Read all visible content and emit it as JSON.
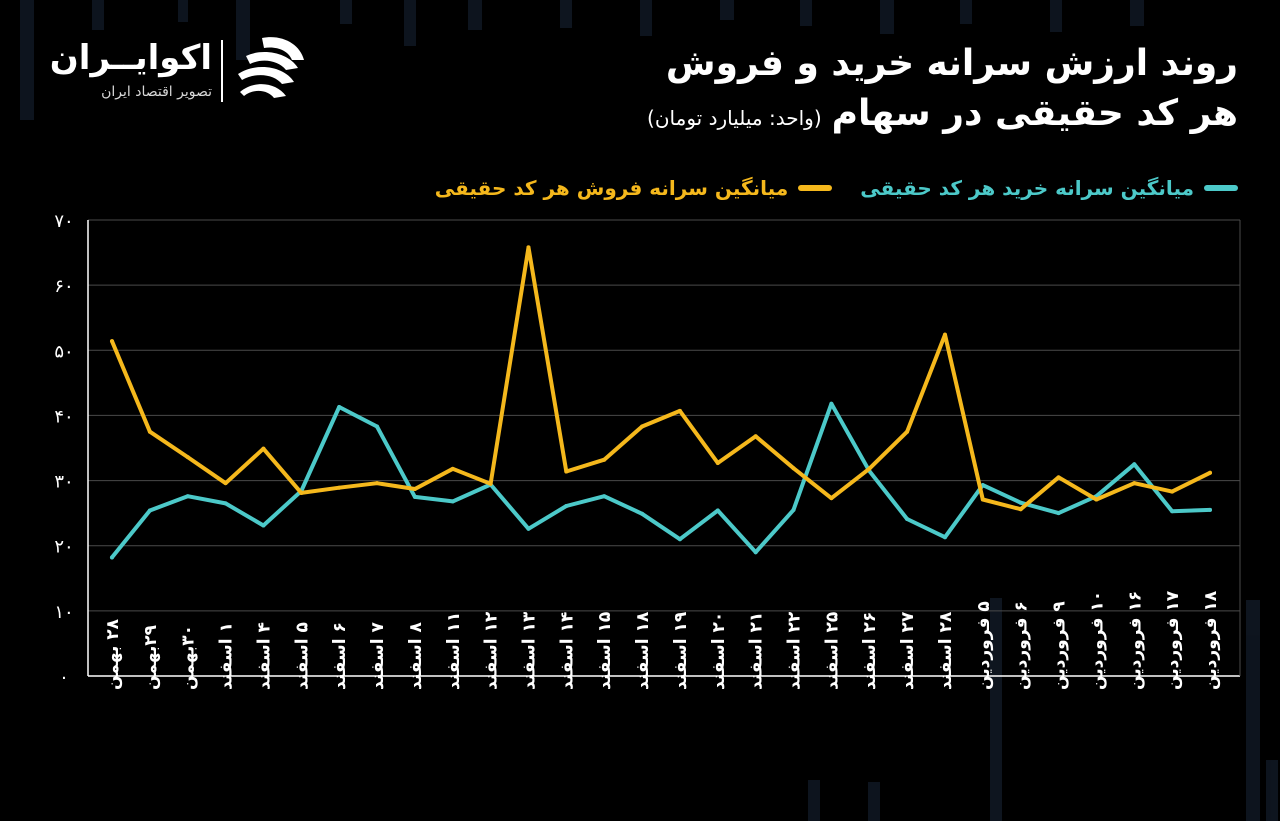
{
  "header": {
    "title_line1": "روند ارزش سرانه خرید و فروش",
    "title_line2": "هر کد حقیقی در سهام",
    "unit": "(واحد: میلیارد تومان)"
  },
  "logo": {
    "name": "اکوایــران",
    "tagline": "تصویر اقتصاد ایران"
  },
  "legend": [
    {
      "label": "میانگین سرانه خرید هر کد حقیقی",
      "color": "#4cc9c9"
    },
    {
      "label": "میانگین سرانه فروش هر کد حقیقی",
      "color": "#f5b81c"
    }
  ],
  "colors": {
    "background": "#000000",
    "grid": "#4a4a4a",
    "axis": "#ffffff"
  },
  "chart_data": {
    "type": "line",
    "ylim": [
      0,
      70
    ],
    "yticks": [
      "۰",
      "۱۰",
      "۲۰",
      "۳۰",
      "۴۰",
      "۵۰",
      "۶۰",
      "۷۰"
    ],
    "ytick_values": [
      0,
      10,
      20,
      30,
      40,
      50,
      60,
      70
    ],
    "grid": "horizontal",
    "categories": [
      "۲۸ بهمن",
      "۲۹بهمن",
      "۳۰بهمن",
      "۱ اسفند",
      "۴ اسفند",
      "۵ اسفند",
      "۶ اسفند",
      "۷ اسفند",
      "۸ اسفند",
      "۱۱ اسفند",
      "۱۲ اسفند",
      "۱۳ اسفند",
      "۱۴ اسفند",
      "۱۵ اسفند",
      "۱۸ اسفند",
      "۱۹ اسفند",
      "۲۰ اسفند",
      "۲۱ اسفند",
      "۲۲ اسفند",
      "۲۵ اسفند",
      "۲۶ اسفند",
      "۲۷ اسفند",
      "۲۸ اسفند",
      "۵ فروردین",
      "۶ فروردین",
      "۹ فروردین",
      "۱۰ فروردین",
      "۱۶ فروردین",
      "۱۷ فروردین",
      "۱۸ فروردین"
    ],
    "series": [
      {
        "name": "میانگین سرانه خرید هر کد حقیقی",
        "color": "#4cc9c9",
        "values": [
          18.2,
          25.4,
          27.6,
          26.5,
          23.1,
          28.4,
          41.3,
          38.3,
          27.5,
          26.8,
          29.4,
          22.6,
          26.1,
          27.6,
          24.9,
          21.0,
          25.4,
          19.0,
          25.5,
          41.8,
          31.5,
          24.1,
          21.3,
          29.3,
          26.6,
          25.0,
          27.6,
          32.5,
          25.3,
          25.5
        ]
      },
      {
        "name": "میانگین سرانه فروش هر کد حقیقی",
        "color": "#f5b81c",
        "values": [
          51.4,
          37.5,
          33.6,
          29.6,
          34.9,
          28.1,
          28.9,
          29.6,
          28.7,
          31.8,
          29.5,
          65.8,
          31.4,
          33.2,
          38.3,
          40.7,
          32.7,
          36.8,
          31.9,
          27.3,
          31.8,
          37.5,
          52.4,
          27.1,
          25.6,
          30.5,
          27.1,
          29.6,
          28.3,
          31.2
        ]
      }
    ]
  }
}
